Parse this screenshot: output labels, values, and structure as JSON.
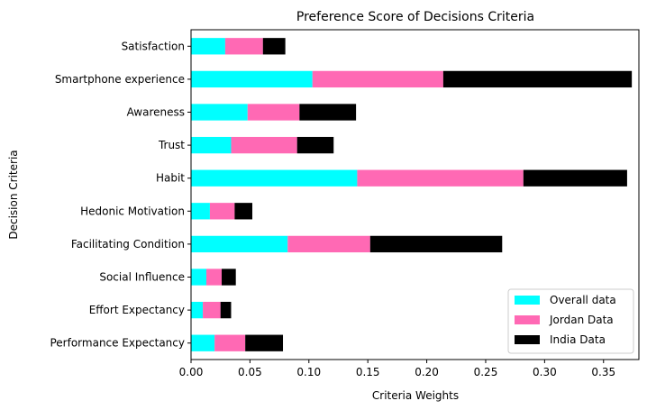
{
  "chart_data": {
    "type": "bar",
    "orientation": "horizontal",
    "stacked": true,
    "title": "Preference Score of Decisions Criteria",
    "xlabel": "Criteria Weights",
    "ylabel": "Decision Criteria",
    "xlim": [
      0,
      0.38
    ],
    "xticks": [
      0.0,
      0.05,
      0.1,
      0.15,
      0.2,
      0.25,
      0.3,
      0.35
    ],
    "xtick_labels": [
      "0.00",
      "0.05",
      "0.10",
      "0.15",
      "0.20",
      "0.25",
      "0.30",
      "0.35"
    ],
    "categories": [
      "Performance Expectancy",
      "Effort Expectancy",
      "Social Influence",
      "Facilitating Condition",
      "Hedonic Motivation",
      "Habit",
      "Trust",
      "Awareness",
      "Smartphone experience",
      "Satisfaction"
    ],
    "series": [
      {
        "name": "Overall data",
        "color": "#00ffff",
        "values": [
          0.02,
          0.01,
          0.013,
          0.082,
          0.016,
          0.141,
          0.034,
          0.048,
          0.103,
          0.029
        ]
      },
      {
        "name": "Jordan Data",
        "color": "#ff69b4",
        "values": [
          0.026,
          0.015,
          0.013,
          0.07,
          0.021,
          0.141,
          0.056,
          0.044,
          0.111,
          0.032
        ]
      },
      {
        "name": "India Data",
        "color": "#000000",
        "values": [
          0.032,
          0.009,
          0.012,
          0.112,
          0.015,
          0.088,
          0.031,
          0.048,
          0.16,
          0.019
        ]
      }
    ],
    "legend_position": "lower-right",
    "grid": false
  }
}
